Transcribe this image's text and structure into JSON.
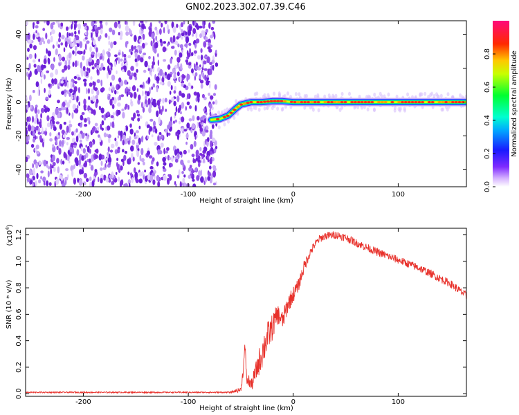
{
  "figure": {
    "title": "GN02.2023.302.07.39.C46"
  },
  "colors": {
    "snr_line": "#e8312b",
    "noise": "#7a2bdc",
    "axis": "#000000"
  },
  "chart_data": [
    {
      "type": "heatmap",
      "title": "",
      "xlabel": "Height of straight line (km)",
      "ylabel": "Frequency (Hz)",
      "xlim": [
        -255,
        165
      ],
      "ylim": [
        -50,
        48
      ],
      "x_ticks": [
        -200,
        -100,
        0,
        100
      ],
      "x_tick_labels": [
        "-200",
        "-100",
        "0",
        "100"
      ],
      "y_ticks": [
        -40,
        -20,
        0,
        20,
        40
      ],
      "y_tick_labels": [
        "-40",
        "-20",
        "0",
        "20",
        "40"
      ],
      "noise_region_x": [
        -255,
        -73
      ],
      "ridge": {
        "x": [
          -78,
          -70,
          -62,
          -55,
          -50,
          -40,
          -30,
          -20,
          -10,
          0,
          20,
          40,
          60,
          80,
          100,
          120,
          140,
          165
        ],
        "y": [
          -10.5,
          -10,
          -8,
          -4,
          -1.5,
          0,
          0,
          0.5,
          0.5,
          0,
          0,
          0,
          0,
          0,
          0,
          0,
          0,
          0
        ]
      },
      "colorbar": {
        "label": "Normalized spectral amplitude",
        "range": [
          0.0,
          1.0
        ],
        "ticks": [
          0.0,
          0.2,
          0.4,
          0.6,
          0.8
        ],
        "tick_labels": [
          "0.0",
          "0.2",
          "0.4",
          "0.6",
          "0.8"
        ]
      },
      "grid": false
    },
    {
      "type": "line",
      "title": "",
      "xlabel": "Height of straight line (km)",
      "ylabel": "SNR (10 * v/v)",
      "y_multiplier_label": "(x10",
      "y_multiplier_exp": "4",
      "xlim": [
        -255,
        165
      ],
      "ylim": [
        -0.02,
        1.25
      ],
      "x_ticks": [
        -200,
        -100,
        0,
        100
      ],
      "x_tick_labels": [
        "-200",
        "-100",
        "0",
        "100"
      ],
      "y_ticks": [
        0.0,
        0.2,
        0.4,
        0.6,
        0.8,
        1.0,
        1.2
      ],
      "y_tick_labels": [
        "0.0",
        "0.2",
        "0.4",
        "0.6",
        "0.8",
        "1.0",
        "1.2"
      ],
      "series": [
        {
          "x": [
            -255,
            -200,
            -150,
            -100,
            -60,
            -50,
            -48,
            -46,
            -44,
            -42,
            -40,
            -35,
            -30,
            -25,
            -20,
            -15,
            -10,
            -5,
            0,
            5,
            10,
            15,
            20,
            25,
            30,
            40,
            50,
            60,
            80,
            100,
            120,
            140,
            150,
            165
          ],
          "values": [
            0.01,
            0.01,
            0.01,
            0.01,
            0.01,
            0.03,
            0.15,
            0.35,
            0.08,
            0.1,
            0.06,
            0.18,
            0.3,
            0.42,
            0.5,
            0.6,
            0.55,
            0.68,
            0.75,
            0.82,
            0.95,
            1.05,
            1.12,
            1.17,
            1.19,
            1.2,
            1.18,
            1.14,
            1.07,
            1.01,
            0.95,
            0.87,
            0.83,
            0.74
          ],
          "noise_amplitude": [
            0.005,
            0.005,
            0.005,
            0.005,
            0.005,
            0.02,
            0.04,
            0.05,
            0.04,
            0.05,
            0.05,
            0.08,
            0.12,
            0.12,
            0.1,
            0.08,
            0.07,
            0.07,
            0.06,
            0.05,
            0.05,
            0.04,
            0.03,
            0.03,
            0.03,
            0.03,
            0.03,
            0.03,
            0.03,
            0.03,
            0.03,
            0.03,
            0.03,
            0.03
          ]
        }
      ],
      "grid": false
    }
  ]
}
